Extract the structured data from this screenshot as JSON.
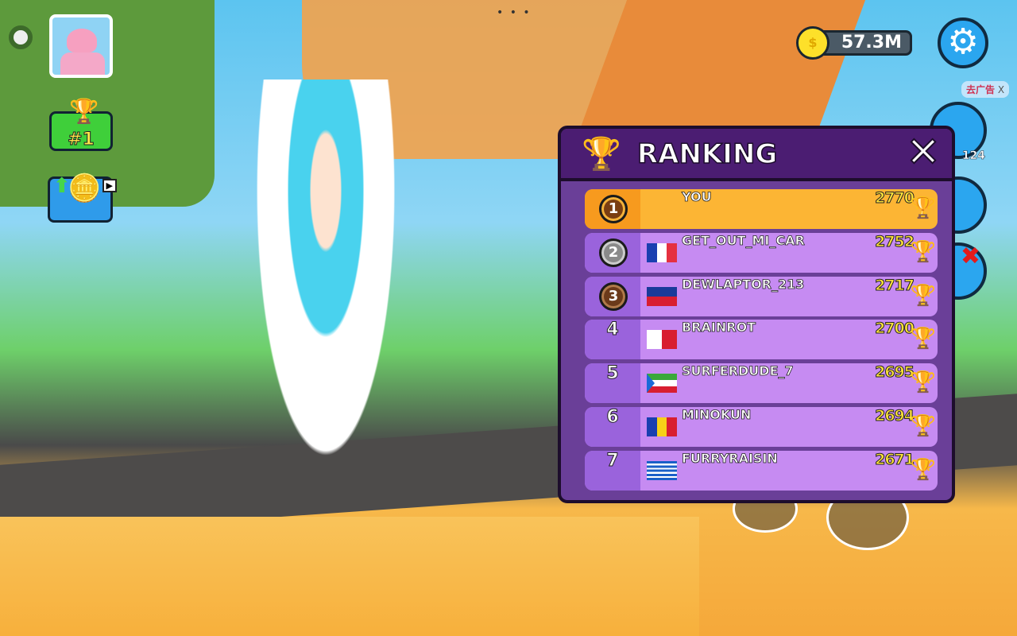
{
  "hud": {
    "coins": "57.3M",
    "coin_symbol": "$",
    "ad_label": "去广告",
    "ad_close": "X",
    "side_count": "124",
    "rank_badge": "#1",
    "menu_dots": "• • •"
  },
  "ranking": {
    "title": "RANKING",
    "close": "✕",
    "rows": [
      {
        "rank": "1",
        "name": "YOU",
        "score": "2770",
        "flag": null,
        "highlight": true
      },
      {
        "rank": "2",
        "name": "GET_OUT_MI_CAR",
        "score": "2752",
        "flag": "france"
      },
      {
        "rank": "3",
        "name": "DEWLAPTOR_213",
        "score": "2717",
        "flag": "liechtenstein"
      },
      {
        "rank": "4",
        "name": "BRAINROT",
        "score": "2700",
        "flag": "malta"
      },
      {
        "rank": "5",
        "name": "SURFERDUDE_7",
        "score": "2695",
        "flag": "equatorial-guinea"
      },
      {
        "rank": "6",
        "name": "MINOKUN",
        "score": "2694",
        "flag": "andorra"
      },
      {
        "rank": "7",
        "name": "FURRYRAISIN",
        "score": "2671",
        "flag": "greece"
      }
    ]
  },
  "colors": {
    "panel": "#6a3f98",
    "header": "#4b1d72",
    "row": "#c68bf2",
    "highlight": "#fcb534",
    "score": "#ffe23a"
  }
}
